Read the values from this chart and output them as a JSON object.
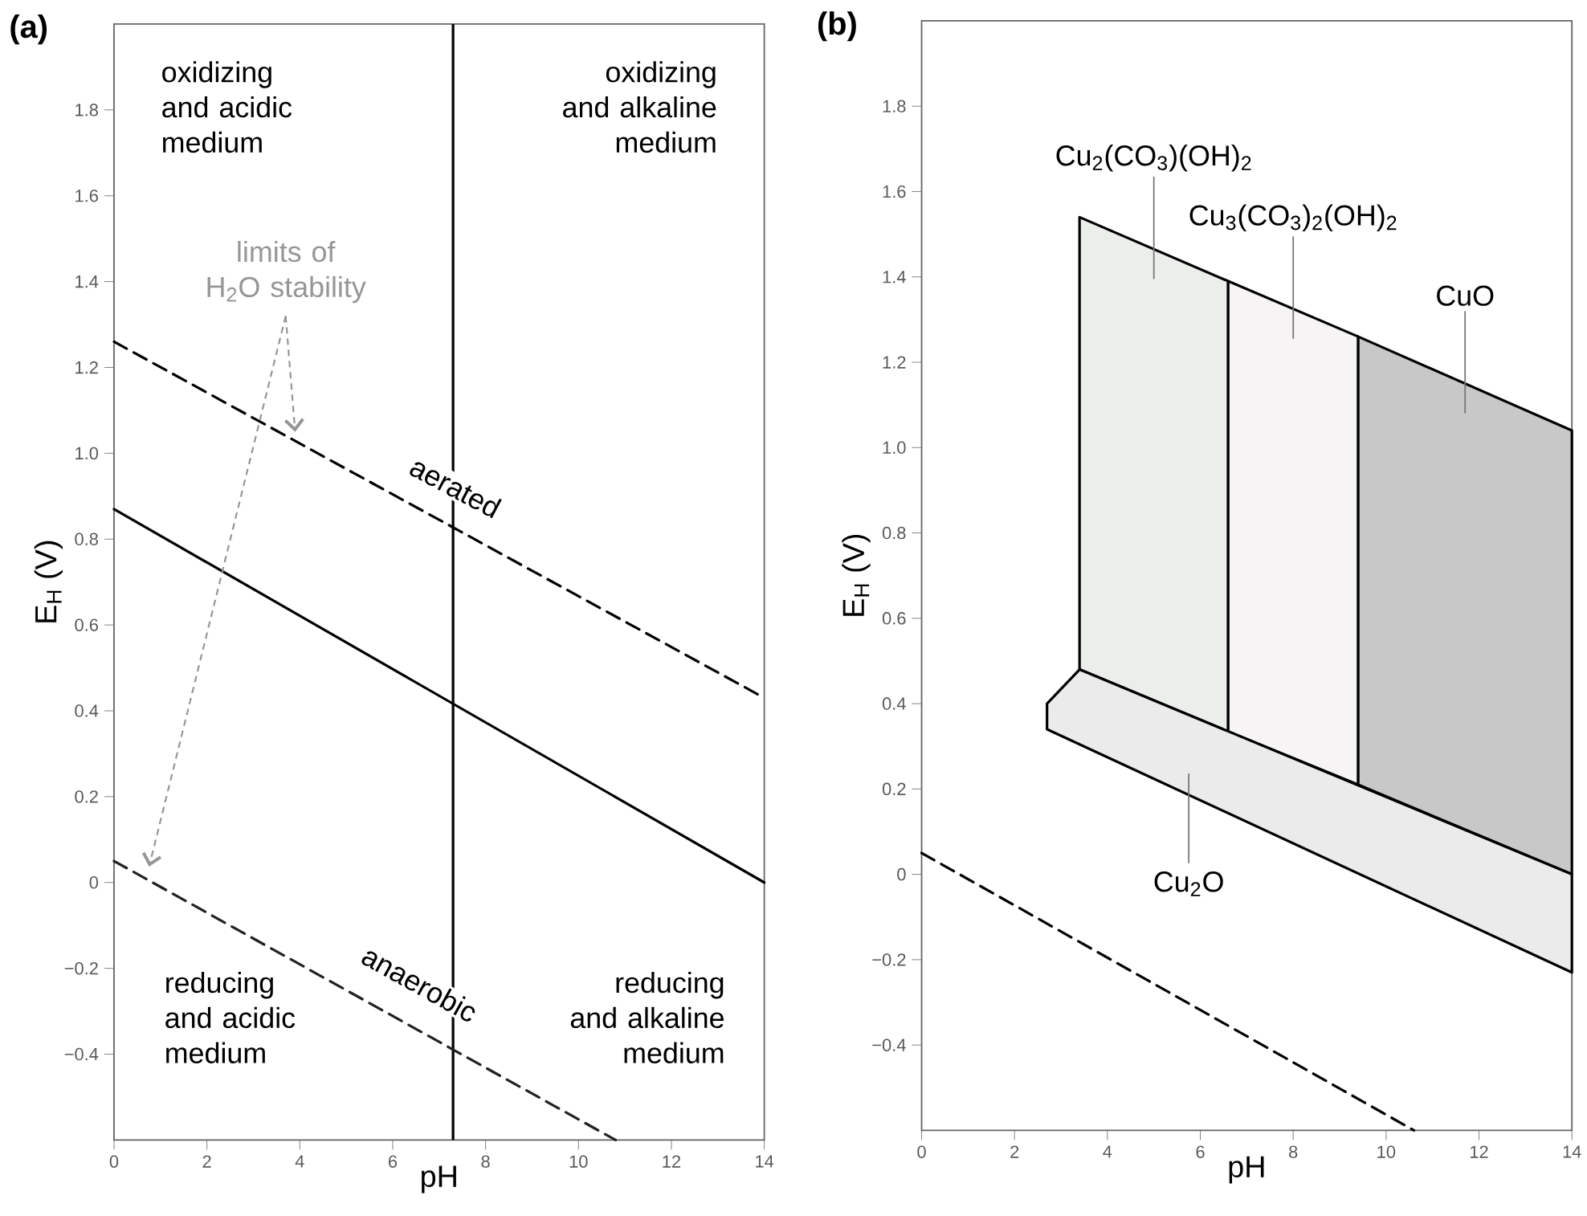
{
  "chart_data": [
    {
      "type": "line",
      "title": "(a)",
      "xlabel": "pH",
      "ylabel": "E$_{H}$ (V)",
      "xlim": [
        0,
        14
      ],
      "ylim": [
        -0.6,
        2.0
      ],
      "xticks": [
        0,
        2,
        4,
        6,
        8,
        10,
        12,
        14
      ],
      "yticks": [
        {
          "value": -0.4,
          "label": "−0.4"
        },
        {
          "value": -0.2,
          "label": "−0.2"
        },
        {
          "value": 0,
          "label": "0"
        },
        {
          "value": 0.2,
          "label": "0.2"
        },
        {
          "value": 0.4,
          "label": "0.4"
        },
        {
          "value": 0.6,
          "label": "0.6"
        },
        {
          "value": 0.8,
          "label": "0.8"
        },
        {
          "value": 1.0,
          "label": "1.0"
        },
        {
          "value": 1.2,
          "label": "1.2"
        },
        {
          "value": 1.4,
          "label": "1.4"
        },
        {
          "value": 1.6,
          "label": "1.6"
        },
        {
          "value": 1.8,
          "label": "1.8"
        }
      ],
      "series": [
        {
          "color": "#000000",
          "line_style": "dashed",
          "x": [
            0,
            14
          ],
          "values": [
            1.26,
            0.43
          ]
        },
        {
          "color": "#000000",
          "line_style": "solid",
          "x": [
            0,
            14
          ],
          "values": [
            0.87,
            0.0
          ]
        },
        {
          "color": "#222222",
          "line_style": "dashed",
          "x": [
            0,
            10.8
          ],
          "values": [
            0.05,
            -0.6
          ]
        }
      ],
      "ref_lines": [
        {
          "axis": "x",
          "value": 7.3,
          "color": "#000000",
          "line_style": "solid"
        }
      ],
      "annotations": [
        "oxidizing and acidic medium",
        "oxidizing and alkaline medium",
        {
          "text": "limits of H$_{2}$O stability",
          "x": 3.9,
          "y": 1.05
        },
        "aerated",
        "anaerobic",
        "reducing and acidic medium",
        "reducing and alkaline medium"
      ]
    },
    {
      "type": "line",
      "title": "(b)",
      "xlabel": "pH",
      "ylabel": "E$_{H}$ (V)",
      "xlim": [
        0,
        14
      ],
      "ylim": [
        -0.6,
        2.0
      ],
      "xticks": [
        0,
        2,
        4,
        6,
        8,
        10,
        12,
        14
      ],
      "yticks": [
        {
          "value": -0.4,
          "label": "−0.4"
        },
        {
          "value": -0.2,
          "label": "−0.2"
        },
        {
          "value": 0,
          "label": "0"
        },
        {
          "value": 0.2,
          "label": "0.2"
        },
        {
          "value": 0.4,
          "label": "0.4"
        },
        {
          "value": 0.6,
          "label": "0.6"
        },
        {
          "value": 0.8,
          "label": "0.8"
        },
        {
          "value": 1.0,
          "label": "1.0"
        },
        {
          "value": 1.2,
          "label": "1.2"
        },
        {
          "value": 1.4,
          "label": "1.4"
        },
        {
          "value": 1.6,
          "label": "1.6"
        },
        {
          "value": 1.8,
          "label": "1.8"
        }
      ],
      "series": [
        {
          "name": "Cu$_{2}$(CO$_{3}$)(OH)$_{2}$",
          "type": "area",
          "color": "#eceeec",
          "x": [
            3.4,
            6.6,
            6.6,
            3.4
          ],
          "values": [
            1.54,
            1.39,
            0.335,
            0.48
          ]
        },
        {
          "name": "Cu$_{3}$(CO$_{3}$)$_{2}$(OH)$_{2}$",
          "type": "area",
          "color": "#f6f4f4",
          "x": [
            6.6,
            9.4,
            9.4,
            6.6
          ],
          "values": [
            1.39,
            1.26,
            0.21,
            0.335
          ]
        },
        {
          "name": "CuO",
          "type": "area",
          "color": "#c8c8c8",
          "x": [
            9.4,
            14,
            14,
            9.4
          ],
          "values": [
            1.26,
            1.04,
            0.0,
            0.21
          ]
        },
        {
          "name": "Cu$_{2}$O",
          "type": "area",
          "color": "#ebebeb",
          "x": [
            2.7,
            3.4,
            14,
            14,
            2.7
          ],
          "values": [
            0.4,
            0.48,
            0.0,
            -0.23,
            0.34
          ]
        },
        {
          "color": "#000000",
          "line_style": "dashed",
          "x": [
            0,
            10.6
          ],
          "values": [
            0.05,
            -0.6
          ]
        }
      ]
    }
  ]
}
